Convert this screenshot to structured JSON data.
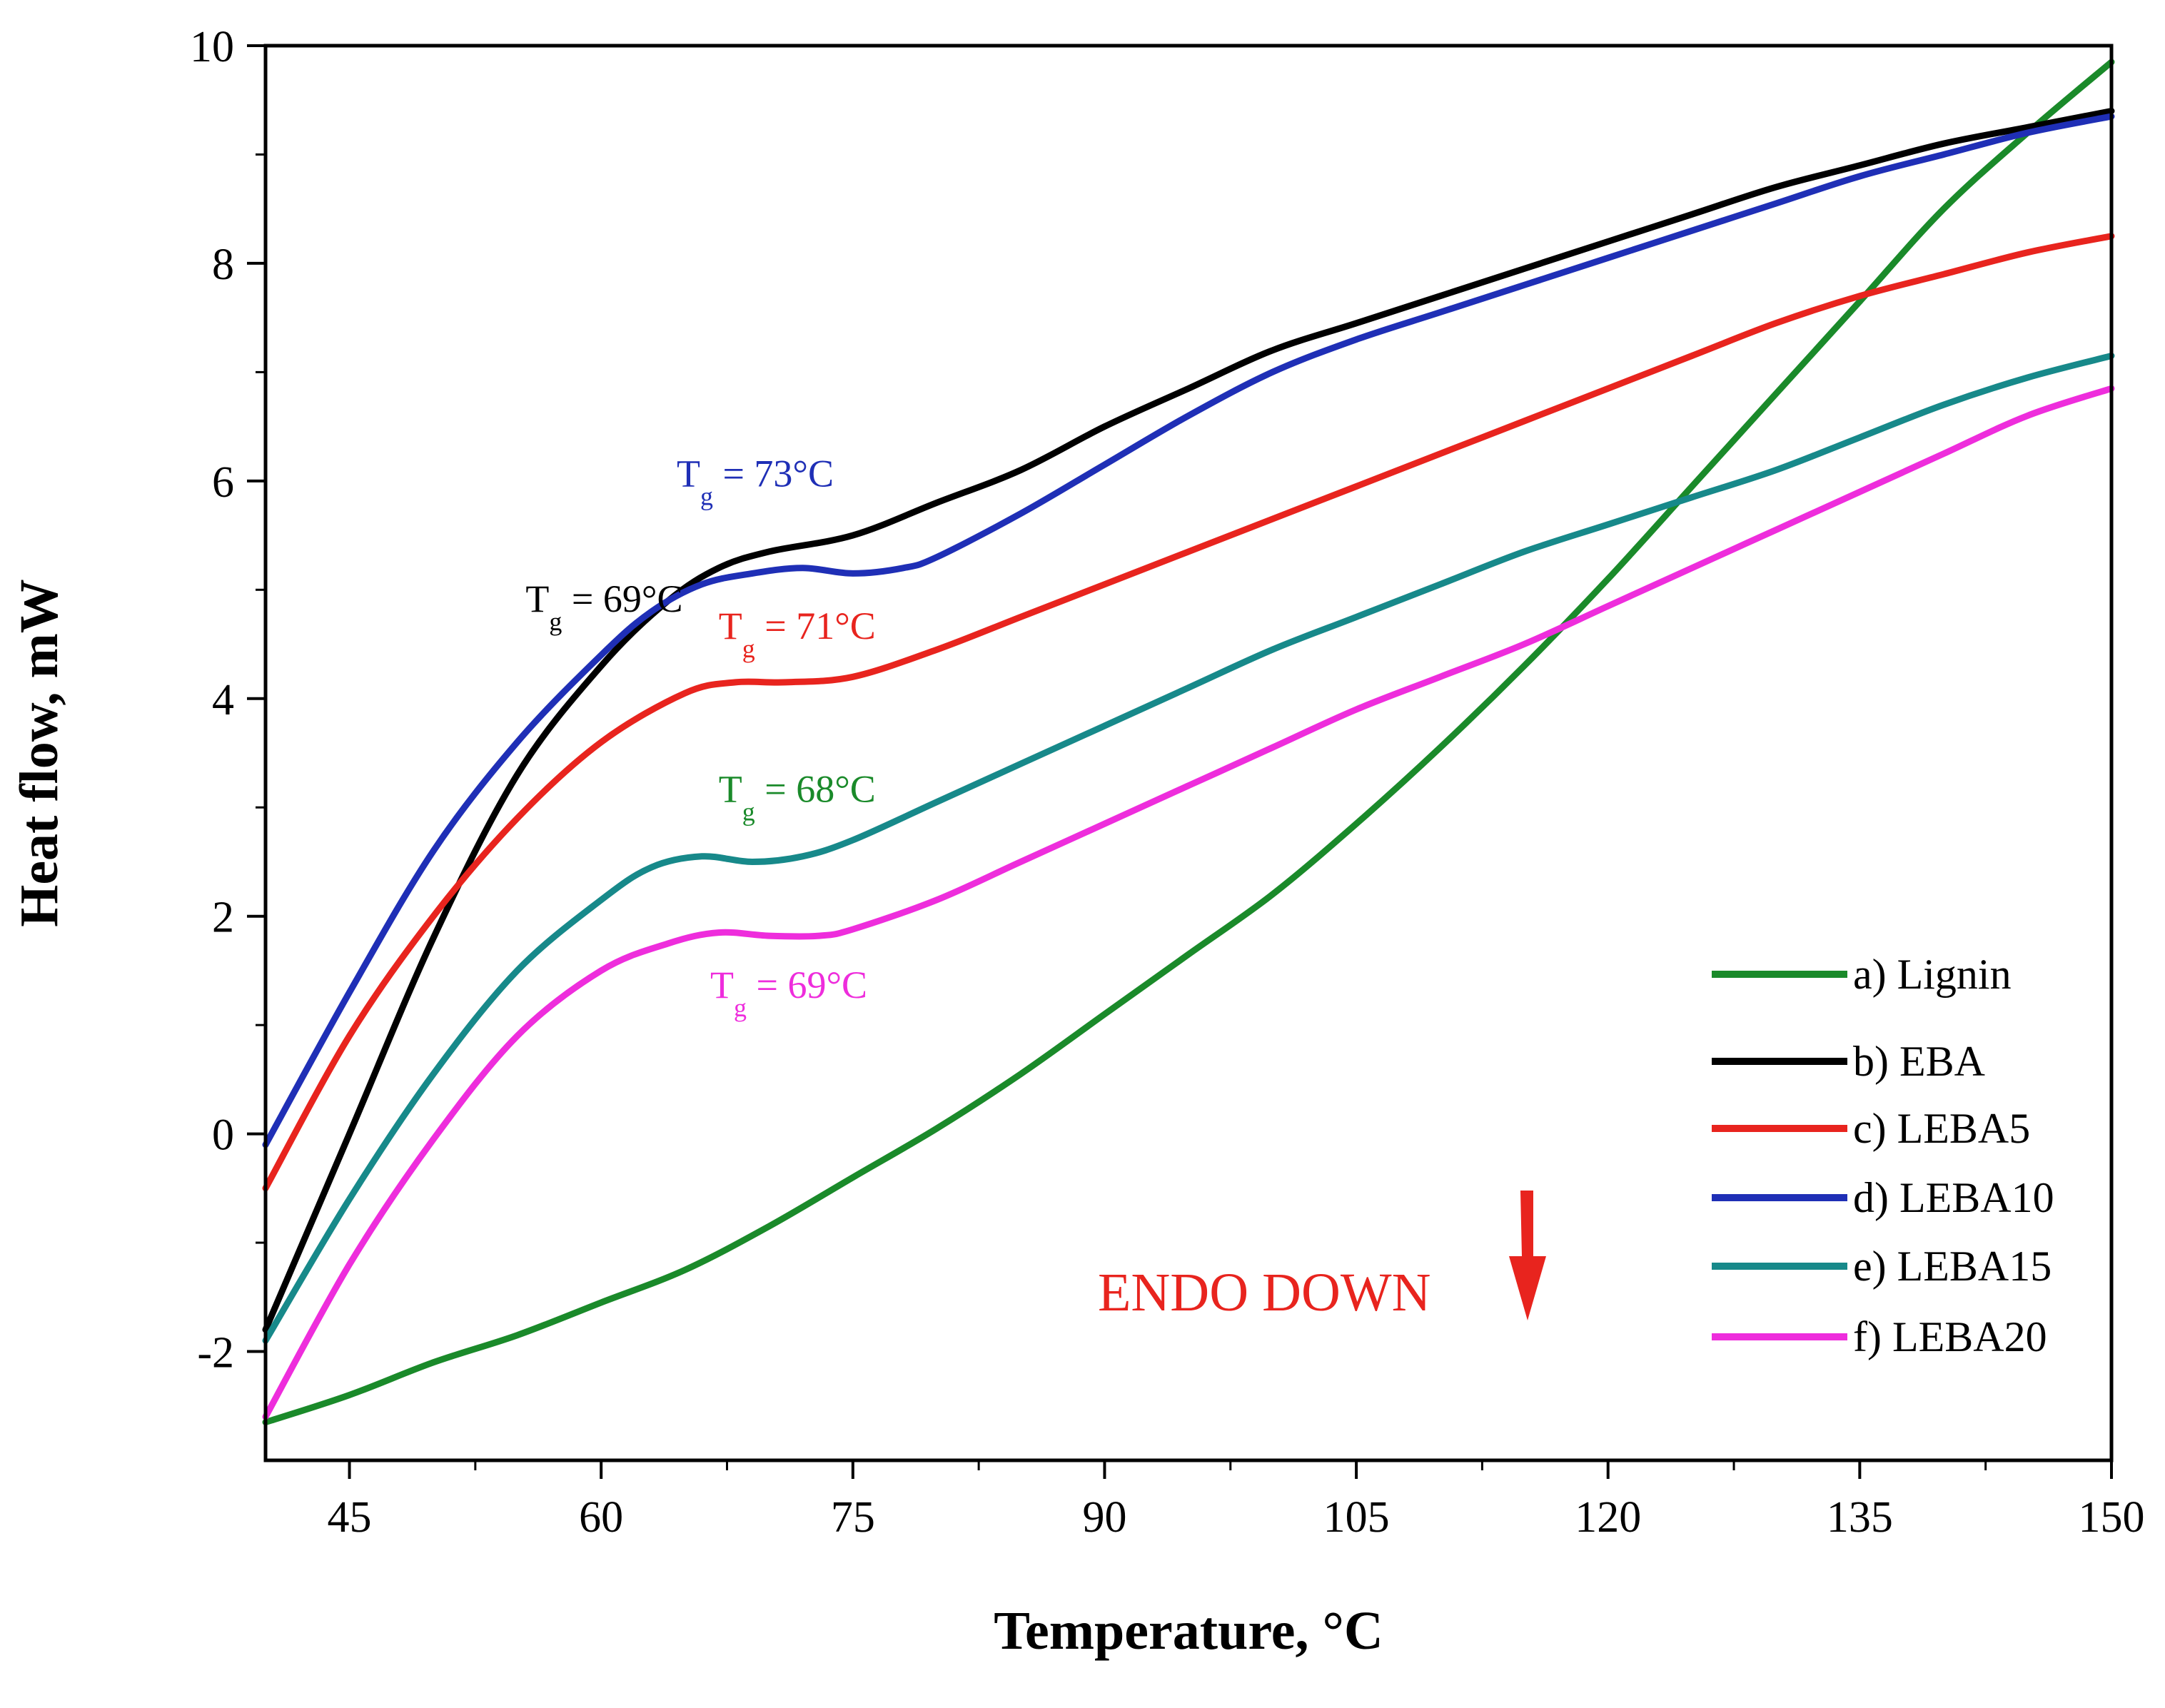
{
  "chart_data": {
    "type": "line",
    "title": "",
    "xlabel": "Temperature, °C",
    "ylabel": "Heat flow, mW",
    "xlim": [
      40,
      150
    ],
    "ylim": [
      -3,
      10
    ],
    "xticks": [
      45,
      60,
      75,
      90,
      105,
      120,
      135,
      150
    ],
    "yticks": [
      -2,
      0,
      2,
      4,
      6,
      8,
      10
    ],
    "xtick_labels": [
      "45",
      "60",
      "75",
      "90",
      "105",
      "120",
      "135",
      "150"
    ],
    "ytick_labels": [
      "-2",
      "0",
      "2",
      "4",
      "6",
      "8",
      "10"
    ],
    "grid": false,
    "legend_position": "bottom-right",
    "series": [
      {
        "name": "a) Lignin",
        "color": "#1a8a2a",
        "x": [
          40,
          45,
          50,
          55,
          60,
          65,
          70,
          75,
          80,
          85,
          90,
          95,
          100,
          105,
          110,
          115,
          120,
          125,
          130,
          135,
          140,
          145,
          150
        ],
        "y": [
          -2.65,
          -2.4,
          -2.1,
          -1.85,
          -1.55,
          -1.25,
          -0.85,
          -0.4,
          0.05,
          0.55,
          1.1,
          1.65,
          2.2,
          2.85,
          3.55,
          4.3,
          5.1,
          5.95,
          6.8,
          7.65,
          8.5,
          9.2,
          9.85
        ]
      },
      {
        "name": "b) EBA",
        "color": "#000000",
        "x": [
          40,
          45,
          50,
          55,
          60,
          64,
          67,
          70,
          75,
          80,
          85,
          90,
          95,
          100,
          105,
          110,
          115,
          120,
          125,
          130,
          135,
          140,
          145,
          150
        ],
        "y": [
          -1.8,
          0.0,
          1.8,
          3.3,
          4.3,
          4.9,
          5.2,
          5.35,
          5.5,
          5.8,
          6.1,
          6.5,
          6.85,
          7.2,
          7.45,
          7.7,
          7.95,
          8.2,
          8.45,
          8.7,
          8.9,
          9.1,
          9.25,
          9.4
        ]
      },
      {
        "name": "c) LEBA5",
        "color": "#e8241e",
        "x": [
          40,
          45,
          50,
          55,
          60,
          65,
          68,
          71,
          75,
          80,
          85,
          90,
          95,
          100,
          105,
          110,
          115,
          120,
          125,
          130,
          135,
          140,
          145,
          150
        ],
        "y": [
          -0.5,
          0.9,
          2.0,
          2.9,
          3.6,
          4.05,
          4.15,
          4.15,
          4.2,
          4.45,
          4.75,
          5.05,
          5.35,
          5.65,
          5.95,
          6.25,
          6.55,
          6.85,
          7.15,
          7.45,
          7.7,
          7.9,
          8.1,
          8.25
        ]
      },
      {
        "name": "d) LEBA10",
        "color": "#1f2fb6",
        "x": [
          40,
          45,
          50,
          55,
          60,
          63,
          66,
          69,
          72,
          75,
          78,
          80,
          85,
          90,
          95,
          100,
          105,
          110,
          115,
          120,
          125,
          130,
          135,
          140,
          145,
          150
        ],
        "y": [
          -0.1,
          1.3,
          2.6,
          3.6,
          4.4,
          4.8,
          5.05,
          5.15,
          5.2,
          5.15,
          5.2,
          5.3,
          5.7,
          6.15,
          6.6,
          7.0,
          7.3,
          7.55,
          7.8,
          8.05,
          8.3,
          8.55,
          8.8,
          9.0,
          9.2,
          9.35
        ]
      },
      {
        "name": "e) LEBA15",
        "color": "#17898a",
        "x": [
          40,
          45,
          50,
          55,
          60,
          63,
          66,
          69,
          72,
          75,
          80,
          85,
          90,
          95,
          100,
          105,
          110,
          115,
          120,
          125,
          130,
          135,
          140,
          145,
          150
        ],
        "y": [
          -1.9,
          -0.6,
          0.55,
          1.5,
          2.15,
          2.45,
          2.55,
          2.5,
          2.55,
          2.7,
          3.05,
          3.4,
          3.75,
          4.1,
          4.45,
          4.75,
          5.05,
          5.35,
          5.6,
          5.85,
          6.1,
          6.4,
          6.7,
          6.95,
          7.15
        ]
      },
      {
        "name": "f) LEBA20",
        "color": "#ee2ddc",
        "x": [
          40,
          45,
          50,
          55,
          60,
          64,
          67,
          70,
          73,
          75,
          80,
          85,
          90,
          95,
          100,
          105,
          110,
          115,
          120,
          125,
          130,
          135,
          140,
          145,
          150
        ],
        "y": [
          -2.6,
          -1.2,
          -0.05,
          0.9,
          1.5,
          1.75,
          1.85,
          1.82,
          1.82,
          1.88,
          2.15,
          2.5,
          2.85,
          3.2,
          3.55,
          3.9,
          4.2,
          4.5,
          4.85,
          5.2,
          5.55,
          5.9,
          6.25,
          6.6,
          6.85
        ]
      }
    ],
    "annotations": [
      {
        "main": "T",
        "sub": "g",
        "rest": " = 69°C",
        "color": "#000000",
        "x": 55.5,
        "y": 4.8
      },
      {
        "main": "T",
        "sub": "g",
        "rest": " = 73°C",
        "color": "#1f2fb6",
        "x": 64.5,
        "y": 5.95
      },
      {
        "main": "T",
        "sub": "g",
        "rest": " = 71°C",
        "color": "#e8241e",
        "x": 67,
        "y": 4.55
      },
      {
        "main": "T",
        "sub": "g",
        "rest": " = 68°C",
        "color": "#1a8a2a",
        "x": 67,
        "y": 3.05
      },
      {
        "main": "T",
        "sub": "g",
        "rest": " = 69°C",
        "color": "#ee2ddc",
        "x": 66.5,
        "y": 1.25
      }
    ],
    "endo_label": "ENDO DOWN",
    "endo_color": "#e8241e"
  }
}
